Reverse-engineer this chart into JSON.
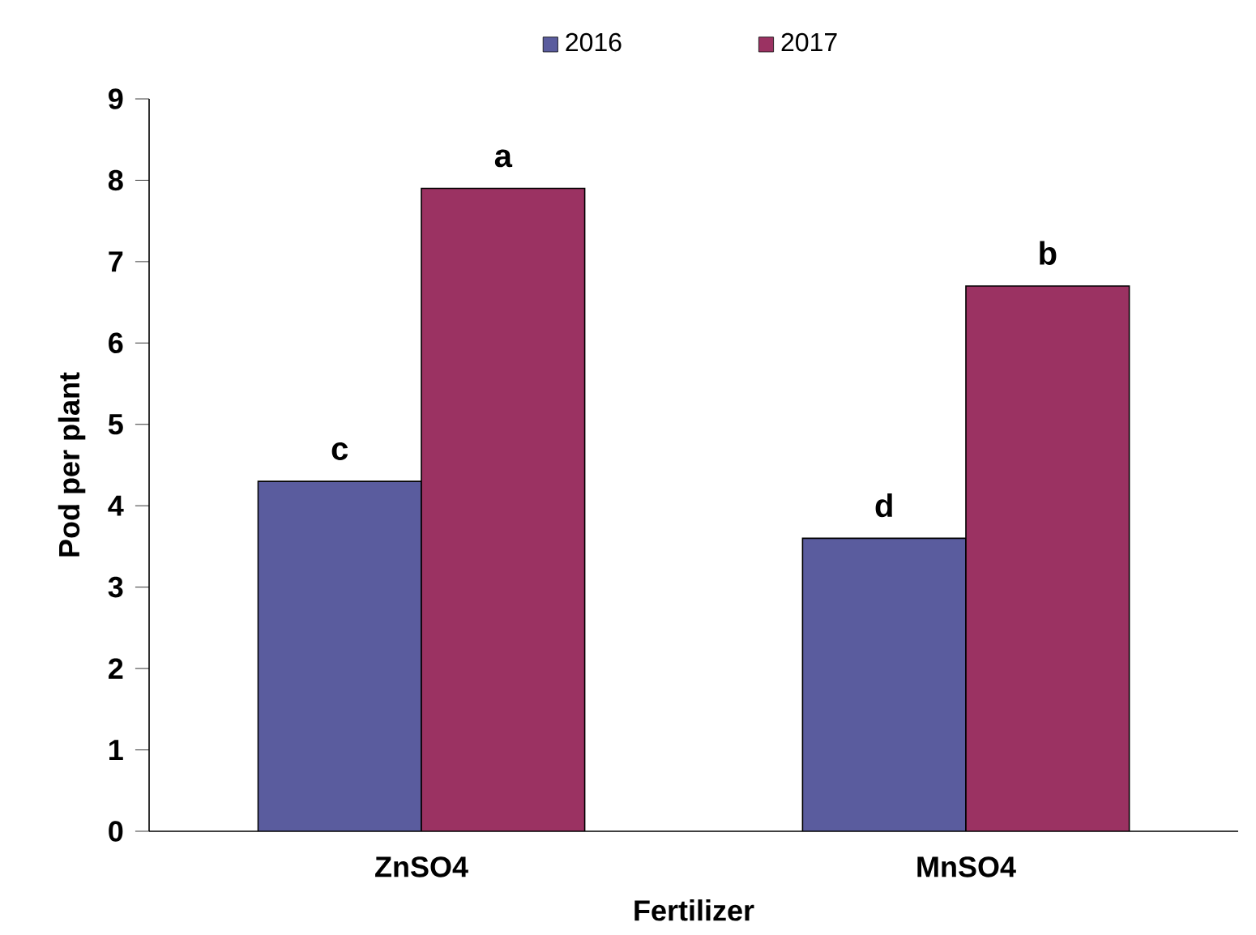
{
  "chart_data": {
    "type": "bar",
    "xlabel": "Fertilizer",
    "ylabel": "Pod per plant",
    "categories": [
      "ZnSO4",
      "MnSO4"
    ],
    "series": [
      {
        "name": "2016",
        "color": "#5a5c9e",
        "values": [
          4.3,
          3.6
        ]
      },
      {
        "name": "2017",
        "color": "#9b3262",
        "values": [
          7.9,
          6.7
        ]
      }
    ],
    "ylim": [
      0,
      9
    ],
    "yticks": [
      0,
      1,
      2,
      3,
      4,
      5,
      6,
      7,
      8,
      9
    ],
    "grid": false,
    "legend": "top",
    "annotations": [
      {
        "text": "c",
        "x": "ZnSO4",
        "y": 4.3
      },
      {
        "text": "a",
        "x": "ZnSO4",
        "y": 7.9
      },
      {
        "text": "d",
        "x": "MnSO4",
        "y": 3.6
      },
      {
        "text": "b",
        "x": "MnSO4",
        "y": 6.7
      }
    ]
  }
}
